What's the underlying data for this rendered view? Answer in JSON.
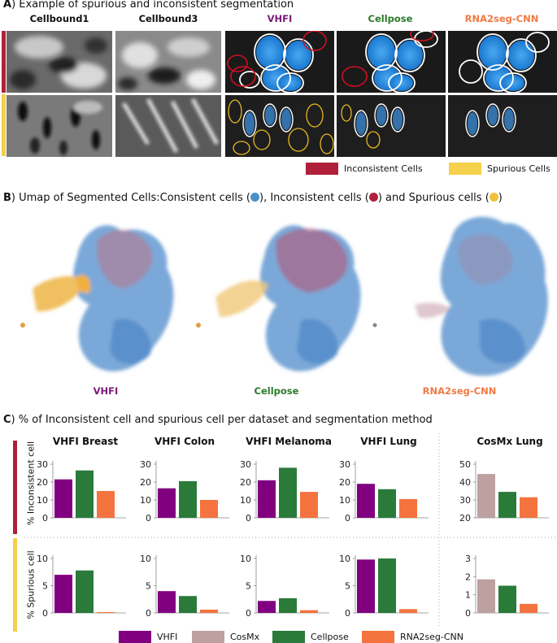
{
  "panel_a": {
    "letter": "A",
    "title": ") Example of spurious and inconsistent segmentation",
    "columns": [
      {
        "label": "Cellbound1",
        "color": "#111111"
      },
      {
        "label": "Cellbound3",
        "color": "#111111"
      },
      {
        "label": "VHFI",
        "color": "#7a1a7a"
      },
      {
        "label": "Cellpose",
        "color": "#2a7a2a"
      },
      {
        "label": "RNA2seg-CNN",
        "color": "#f07a45"
      }
    ],
    "legend": [
      {
        "label": "Inconsistent Cells",
        "color": "#b0203a"
      },
      {
        "label": "Spurious Cells",
        "color": "#f5d04a"
      }
    ]
  },
  "panel_b": {
    "letter": "B",
    "title": ") Umap of Segmented Cells:Consistent cells (",
    "t2": "), Inconsistent cells (",
    "t3": ") and Spurious cells (",
    "t4": ")",
    "labels": [
      {
        "label": "VHFI",
        "color": "#7a1a7a"
      },
      {
        "label": "Cellpose",
        "color": "#2a7a2a"
      },
      {
        "label": "RNA2seg-CNN",
        "color": "#f07a45"
      }
    ],
    "colors": {
      "consistent": "#4a90c8",
      "inconsistent": "#b0203a",
      "spurious": "#f0b040"
    }
  },
  "panel_c": {
    "letter": "C",
    "title": ") % of  Inconsistent cell and spurious cell per dataset and segmentation method",
    "ylabel_top": "% Inconsistent cell",
    "ylabel_bottom": "% Spurious cell",
    "legend": [
      {
        "label": "VHFI",
        "color": "#800080"
      },
      {
        "label": "CosMx",
        "color": "#bda0a0"
      },
      {
        "label": "Cellpose",
        "color": "#2a7a3a"
      },
      {
        "label": "RNA2seg-CNN",
        "color": "#f4733f"
      }
    ]
  },
  "chart_data": [
    {
      "type": "bar",
      "title": "VHFI Breast",
      "ylim": [
        0,
        30
      ],
      "yticks": [
        0,
        10,
        20,
        30
      ],
      "series": [
        {
          "name": "VHFI",
          "values": [
            21.5
          ]
        },
        {
          "name": "Cellpose",
          "values": [
            26.5
          ]
        },
        {
          "name": "RNA2seg-CNN",
          "values": [
            15
          ]
        }
      ]
    },
    {
      "type": "bar",
      "title": "VHFI Colon",
      "ylim": [
        0,
        30
      ],
      "yticks": [
        0,
        10,
        20,
        30
      ],
      "series": [
        {
          "name": "VHFI",
          "values": [
            16.5
          ]
        },
        {
          "name": "Cellpose",
          "values": [
            20.5
          ]
        },
        {
          "name": "RNA2seg-CNN",
          "values": [
            10
          ]
        }
      ]
    },
    {
      "type": "bar",
      "title": "VHFI Melanoma",
      "ylim": [
        0,
        30
      ],
      "yticks": [
        0,
        10,
        20,
        30
      ],
      "series": [
        {
          "name": "VHFI",
          "values": [
            21
          ]
        },
        {
          "name": "Cellpose",
          "values": [
            28
          ]
        },
        {
          "name": "RNA2seg-CNN",
          "values": [
            14.5
          ]
        }
      ]
    },
    {
      "type": "bar",
      "title": "VHFI Lung",
      "ylim": [
        0,
        30
      ],
      "yticks": [
        0,
        10,
        20,
        30
      ],
      "series": [
        {
          "name": "VHFI",
          "values": [
            19
          ]
        },
        {
          "name": "Cellpose",
          "values": [
            16
          ]
        },
        {
          "name": "RNA2seg-CNN",
          "values": [
            10.5
          ]
        }
      ]
    },
    {
      "type": "bar",
      "title": "CosMx Lung",
      "ylim": [
        20,
        50
      ],
      "yticks": [
        20,
        30,
        40,
        50
      ],
      "series": [
        {
          "name": "CosMx",
          "values": [
            44.5
          ]
        },
        {
          "name": "Cellpose",
          "values": [
            34.5
          ]
        },
        {
          "name": "RNA2seg-CNN",
          "values": [
            31.5
          ]
        }
      ]
    },
    {
      "type": "bar",
      "title": "",
      "ylim": [
        0,
        10
      ],
      "yticks": [
        0,
        5,
        10
      ],
      "series": [
        {
          "name": "VHFI",
          "values": [
            7
          ]
        },
        {
          "name": "Cellpose",
          "values": [
            7.8
          ]
        },
        {
          "name": "RNA2seg-CNN",
          "values": [
            0.1
          ]
        }
      ]
    },
    {
      "type": "bar",
      "title": "",
      "ylim": [
        0,
        10
      ],
      "yticks": [
        0,
        5,
        10
      ],
      "series": [
        {
          "name": "VHFI",
          "values": [
            4
          ]
        },
        {
          "name": "Cellpose",
          "values": [
            3.1
          ]
        },
        {
          "name": "RNA2seg-CNN",
          "values": [
            0.6
          ]
        }
      ]
    },
    {
      "type": "bar",
      "title": "",
      "ylim": [
        0,
        10
      ],
      "yticks": [
        0,
        5,
        10
      ],
      "series": [
        {
          "name": "VHFI",
          "values": [
            2.2
          ]
        },
        {
          "name": "Cellpose",
          "values": [
            2.7
          ]
        },
        {
          "name": "RNA2seg-CNN",
          "values": [
            0.5
          ]
        }
      ]
    },
    {
      "type": "bar",
      "title": "",
      "ylim": [
        0,
        10
      ],
      "yticks": [
        0,
        5,
        10
      ],
      "series": [
        {
          "name": "VHFI",
          "values": [
            9.8
          ]
        },
        {
          "name": "Cellpose",
          "values": [
            10
          ]
        },
        {
          "name": "RNA2seg-CNN",
          "values": [
            0.7
          ]
        }
      ]
    },
    {
      "type": "bar",
      "title": "",
      "ylim": [
        0,
        3
      ],
      "yticks": [
        0,
        1,
        2,
        3
      ],
      "series": [
        {
          "name": "CosMx",
          "values": [
            1.85
          ]
        },
        {
          "name": "Cellpose",
          "values": [
            1.5
          ]
        },
        {
          "name": "RNA2seg-CNN",
          "values": [
            0.5
          ]
        }
      ]
    }
  ]
}
